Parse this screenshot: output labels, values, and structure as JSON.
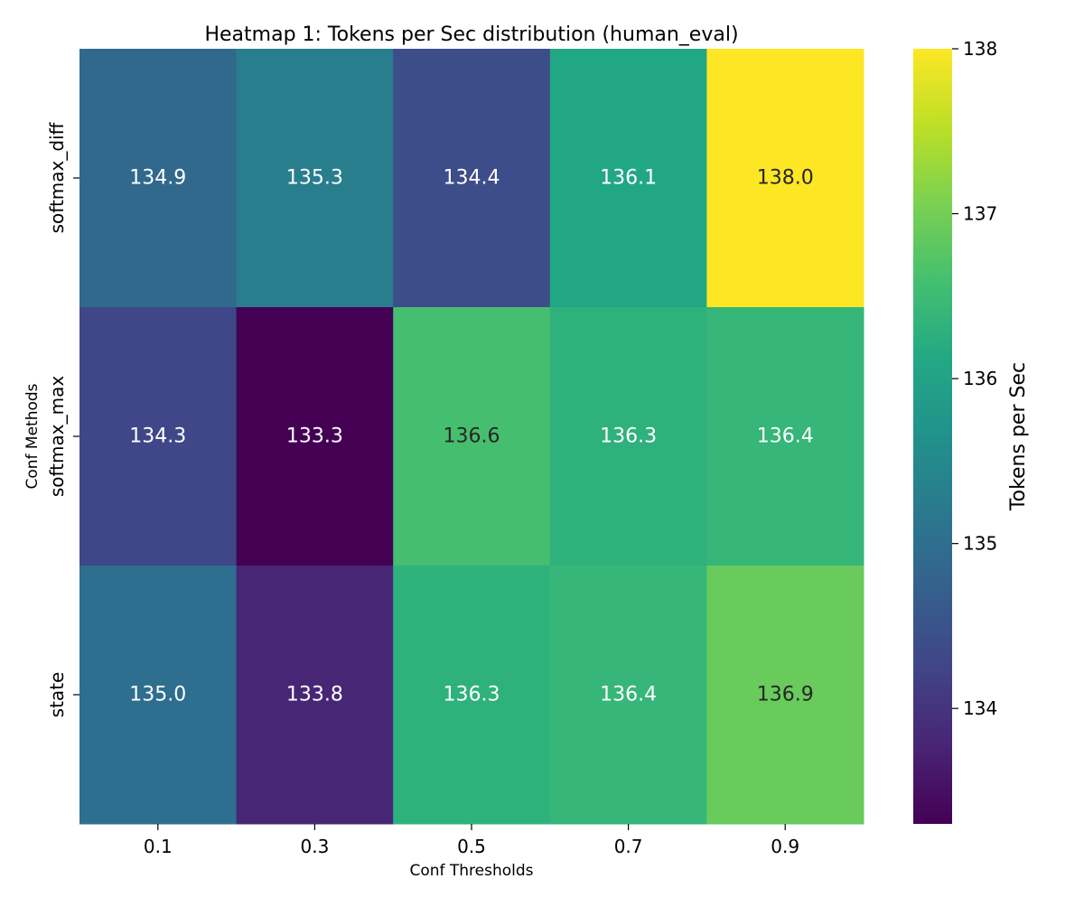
{
  "chart_data": {
    "type": "heatmap",
    "title": "Heatmap 1: Tokens per Sec distribution (human_eval)",
    "xlabel": "Conf Thresholds",
    "ylabel": "Conf Methods",
    "x_categories": [
      "0.1",
      "0.3",
      "0.5",
      "0.7",
      "0.9"
    ],
    "y_categories": [
      "softmax_diff",
      "softmax_max",
      "state"
    ],
    "values": [
      [
        134.9,
        135.3,
        134.4,
        136.1,
        138.0
      ],
      [
        134.3,
        133.3,
        136.6,
        136.3,
        136.4
      ],
      [
        135.0,
        133.8,
        136.3,
        136.4,
        136.9
      ]
    ],
    "value_format": "0.1f",
    "colormap": "viridis",
    "colorbar": {
      "label": "Tokens per Sec",
      "ticks": [
        134,
        135,
        136,
        137,
        138
      ],
      "vmin": 133.3,
      "vmax": 138.0
    },
    "annotation_text_colors": {
      "light": "#ffffff",
      "dark": "#262626"
    }
  }
}
